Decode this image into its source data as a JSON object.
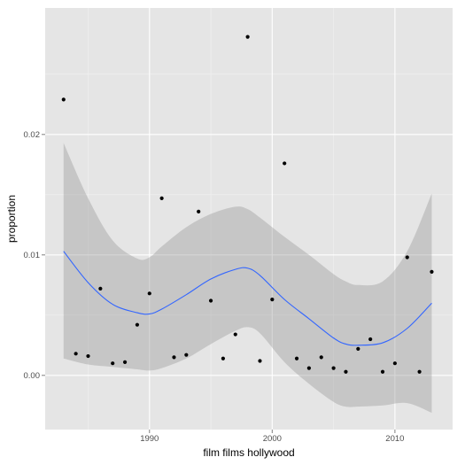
{
  "chart_data": {
    "type": "scatter",
    "xlabel": "film films hollywood",
    "ylabel": "proportion",
    "xlim": [
      1981.5,
      2014.7
    ],
    "ylim": [
      -0.0045,
      0.0305
    ],
    "x_ticks": [
      1990,
      2000,
      2010
    ],
    "x_tick_labels": [
      "1990",
      "2000",
      "2010"
    ],
    "y_ticks": [
      0.0,
      0.01,
      0.02
    ],
    "y_tick_labels": [
      "0.00",
      "0.01",
      "0.02"
    ],
    "grid": true,
    "legend": "none",
    "points": {
      "x": [
        1983,
        1984,
        1985,
        1986,
        1987,
        1988,
        1989,
        1990,
        1991,
        1992,
        1993,
        1994,
        1995,
        1996,
        1997,
        1998,
        1999,
        2000,
        2001,
        2002,
        2003,
        2004,
        2005,
        2006,
        2007,
        2008,
        2009,
        2010,
        2011,
        2012,
        2013
      ],
      "y": [
        0.0229,
        0.0018,
        0.0016,
        0.0072,
        0.001,
        0.0011,
        0.0042,
        0.0068,
        0.0147,
        0.0015,
        0.0017,
        0.0136,
        0.0062,
        0.0014,
        0.0034,
        0.0281,
        0.0012,
        0.0063,
        0.0176,
        0.0014,
        0.0006,
        0.0015,
        0.0006,
        0.0003,
        0.0022,
        0.003,
        0.0003,
        0.001,
        0.0098,
        0.0003,
        0.0086
      ]
    },
    "smooth": {
      "x": [
        1983,
        1985,
        1987,
        1989,
        1990,
        1991,
        1993,
        1995,
        1997,
        1998,
        1999,
        2001,
        2003,
        2005,
        2006,
        2007,
        2009,
        2011,
        2013
      ],
      "y": [
        0.0103,
        0.0077,
        0.0059,
        0.0052,
        0.0051,
        0.0055,
        0.0067,
        0.008,
        0.0088,
        0.0089,
        0.0083,
        0.0063,
        0.0047,
        0.0031,
        0.0026,
        0.0025,
        0.0027,
        0.0039,
        0.006
      ],
      "upper": [
        0.0193,
        0.0147,
        0.0112,
        0.0097,
        0.0098,
        0.0107,
        0.0123,
        0.0134,
        0.014,
        0.0138,
        0.0131,
        0.0115,
        0.01,
        0.0084,
        0.0078,
        0.0075,
        0.0078,
        0.0103,
        0.0151
      ],
      "lower": [
        0.0014,
        0.0009,
        0.0007,
        0.0005,
        0.0004,
        0.0006,
        0.0014,
        0.0026,
        0.0037,
        0.004,
        0.0035,
        0.0011,
        -0.0007,
        -0.0022,
        -0.0026,
        -0.0026,
        -0.0025,
        -0.0023,
        -0.0031
      ]
    },
    "colors": {
      "panel": "#e5e5e5",
      "grid_major": "#ffffff",
      "grid_minor": "#f2f2f2",
      "point": "#000000",
      "line": "#3366ff",
      "ribbon": "#999999"
    }
  }
}
